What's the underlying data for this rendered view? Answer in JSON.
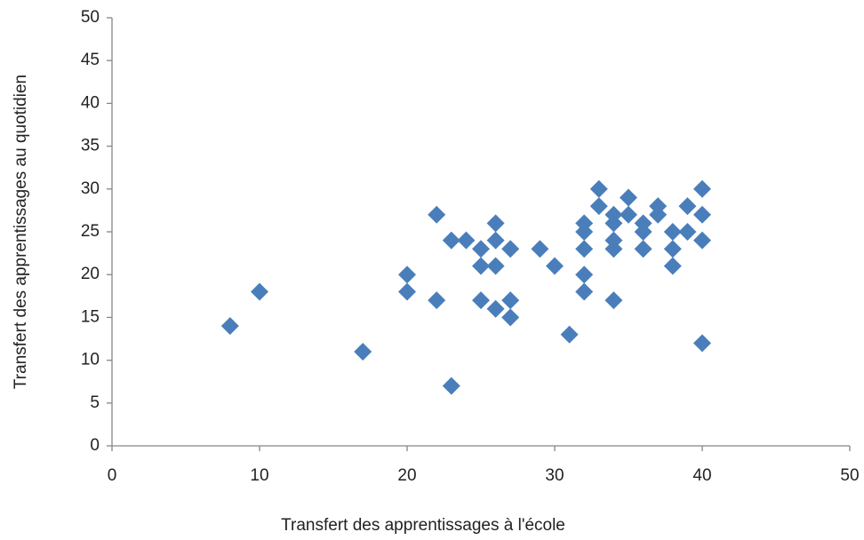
{
  "chart_data": {
    "type": "scatter",
    "x_label": "Transfert des apprentissages à l'école",
    "y_label": "Transfert des apprentissages au quotidien",
    "x": [
      8,
      10,
      17,
      20,
      20,
      22,
      22,
      23,
      23,
      24,
      25,
      25,
      25,
      26,
      26,
      26,
      26,
      27,
      27,
      27,
      29,
      30,
      31,
      32,
      32,
      32,
      32,
      32,
      33,
      33,
      34,
      34,
      34,
      34,
      34,
      35,
      35,
      36,
      36,
      36,
      37,
      37,
      38,
      38,
      38,
      39,
      39,
      40,
      40,
      40,
      40
    ],
    "values": [
      14,
      18,
      11,
      20,
      18,
      27,
      17,
      24,
      7,
      24,
      23,
      21,
      17,
      26,
      24,
      21,
      16,
      23,
      17,
      15,
      23,
      21,
      13,
      26,
      25,
      23,
      20,
      18,
      30,
      28,
      27,
      26,
      24,
      23,
      17,
      29,
      27,
      26,
      25,
      23,
      28,
      27,
      25,
      23,
      21,
      28,
      25,
      30,
      27,
      24,
      12
    ],
    "color": "#4a7ebb",
    "xlim": [
      0,
      50
    ],
    "xticks": [
      0,
      10,
      20,
      30,
      40,
      50
    ],
    "ylim": [
      0,
      50
    ],
    "yticks": [
      0,
      5,
      10,
      15,
      20,
      25,
      30,
      35,
      40,
      45,
      50
    ],
    "grid": false
  }
}
